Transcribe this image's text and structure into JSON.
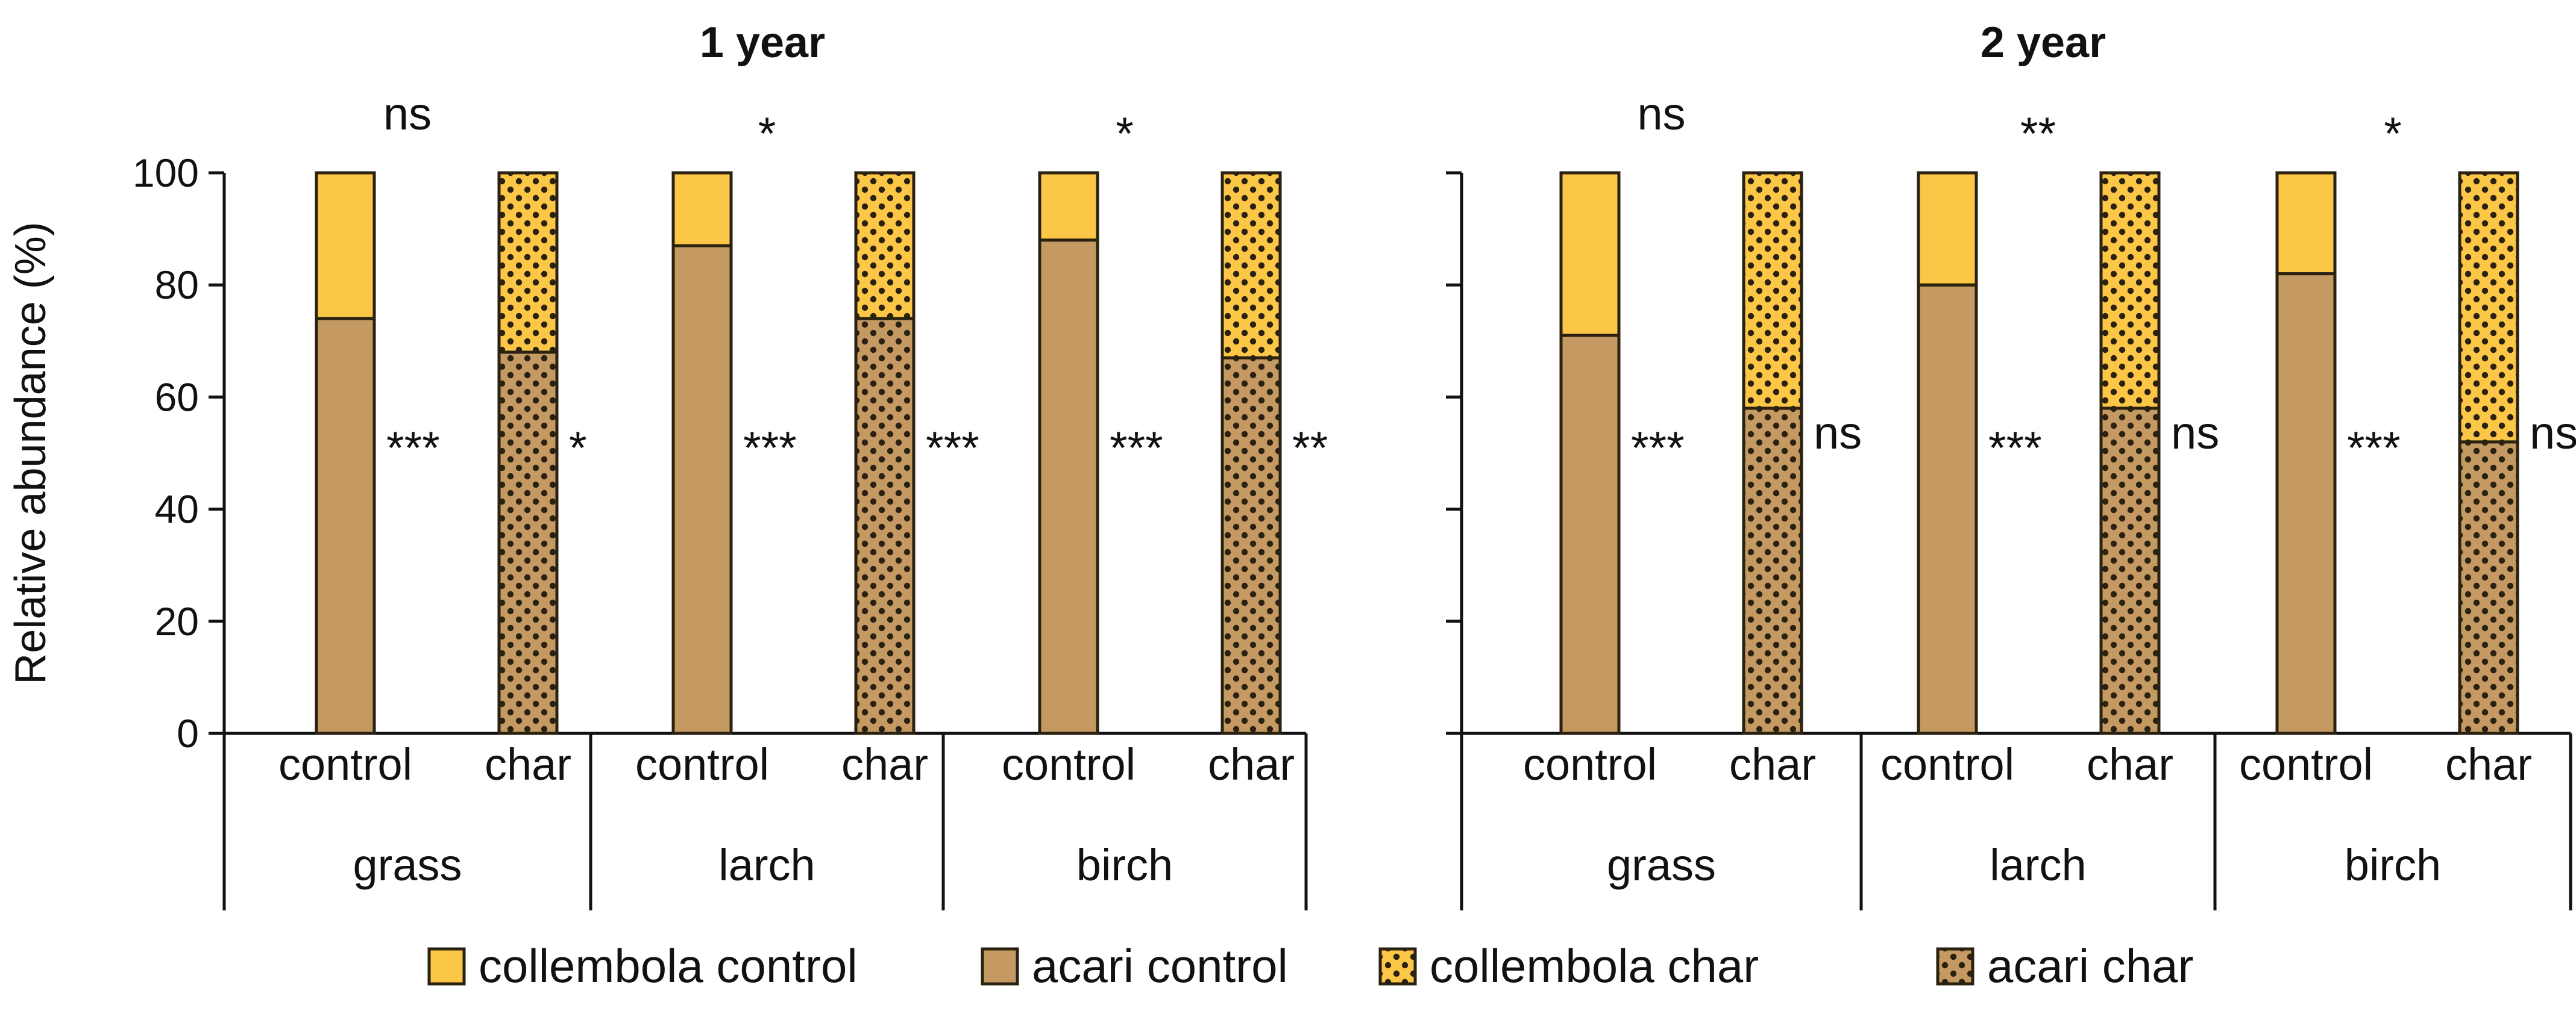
{
  "chart_data": {
    "type": "bar",
    "stacked": true,
    "ylabel": "Relative abundance (%)",
    "ylim": [
      0,
      100
    ],
    "yticks": [
      0,
      20,
      40,
      60,
      80,
      100
    ],
    "colors": {
      "acari": "#c49a62",
      "collembola": "#fcc647",
      "outline": "#2a2111",
      "dots": "#2a2111"
    },
    "panels": [
      {
        "title": "1 year",
        "groups": [
          {
            "label": "grass",
            "top_sig": "ns",
            "bars": [
              {
                "label": "control",
                "treatment": "control",
                "acari": 74,
                "collembola": 26,
                "sig": "***"
              },
              {
                "label": "char",
                "treatment": "char",
                "acari": 68,
                "collembola": 32,
                "sig": "*"
              }
            ]
          },
          {
            "label": "larch",
            "top_sig": "*",
            "bars": [
              {
                "label": "control",
                "treatment": "control",
                "acari": 87,
                "collembola": 13,
                "sig": "***"
              },
              {
                "label": "char",
                "treatment": "char",
                "acari": 74,
                "collembola": 26,
                "sig": "***"
              }
            ]
          },
          {
            "label": "birch",
            "top_sig": "*",
            "bars": [
              {
                "label": "control",
                "treatment": "control",
                "acari": 88,
                "collembola": 12,
                "sig": "***"
              },
              {
                "label": "char",
                "treatment": "char",
                "acari": 67,
                "collembola": 33,
                "sig": "**"
              }
            ]
          }
        ]
      },
      {
        "title": "2 year",
        "groups": [
          {
            "label": "grass",
            "top_sig": "ns",
            "bars": [
              {
                "label": "control",
                "treatment": "control",
                "acari": 71,
                "collembola": 29,
                "sig": "***"
              },
              {
                "label": "char",
                "treatment": "char",
                "acari": 58,
                "collembola": 42,
                "sig": "ns"
              }
            ]
          },
          {
            "label": "larch",
            "top_sig": "**",
            "bars": [
              {
                "label": "control",
                "treatment": "control",
                "acari": 80,
                "collembola": 20,
                "sig": "***"
              },
              {
                "label": "char",
                "treatment": "char",
                "acari": 58,
                "collembola": 42,
                "sig": "ns"
              }
            ]
          },
          {
            "label": "birch",
            "top_sig": "*",
            "bars": [
              {
                "label": "control",
                "treatment": "control",
                "acari": 82,
                "collembola": 18,
                "sig": "***"
              },
              {
                "label": "char",
                "treatment": "char",
                "acari": 52,
                "collembola": 48,
                "sig": "ns"
              }
            ]
          }
        ]
      }
    ],
    "legend": [
      {
        "label": "collembola control",
        "taxon": "collembola",
        "treatment": "control"
      },
      {
        "label": "acari control",
        "taxon": "acari",
        "treatment": "control"
      },
      {
        "label": "collembola char",
        "taxon": "collembola",
        "treatment": "char"
      },
      {
        "label": "acari char",
        "taxon": "acari",
        "treatment": "char"
      }
    ],
    "legend_position": "bottom"
  }
}
